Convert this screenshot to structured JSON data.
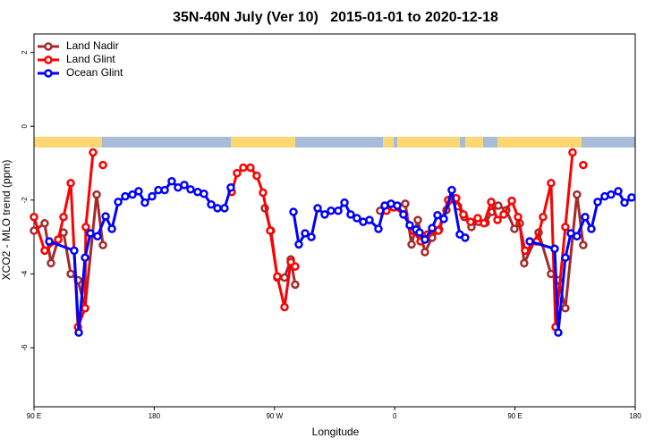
{
  "chart_data": {
    "type": "line",
    "title": "35N-40N July (Ver 10)   2015-01-01 to 2020-12-18",
    "x_label": "Longitude",
    "y_label": "XCO2 - MLO trend (ppm)",
    "xlim": [
      90,
      540
    ],
    "ylim": [
      -7.6,
      2.5
    ],
    "xticks": [
      {
        "value": 90,
        "label": "90 E"
      },
      180,
      {
        "value": 270,
        "label": "90 W"
      },
      {
        "value": 360,
        "label": "0"
      },
      {
        "value": 450,
        "label": "90 E"
      },
      {
        "value": 540,
        "label": "180"
      }
    ],
    "yticks": [
      2,
      0,
      -2,
      -4,
      -6
    ],
    "legend": "top-left",
    "series": [
      {
        "name": "Land Nadir",
        "color": "#a52a2a",
        "x": [
          90,
          98,
          102.7,
          108.1,
          112.1,
          117.5,
          122.9,
          128.2,
          136.9,
          141.6,
          null,
          262.8,
          267.4,
          272.1,
          277.5,
          282.2,
          285.5,
          null,
          349.1,
          357.2,
          367.9,
          372.6,
          377.3,
          382.6,
          388,
          393.3,
          398.7,
          402.7,
          407.4,
          412.1,
          417.4,
          422.8,
          428.1,
          432.8,
          437.5,
          443.5,
          449.6,
          453.6,
          456.9,
          467.7,
          477,
          482.4,
          487.7,
          496.4,
          501.1
        ],
        "values": [
          -2.83,
          -2.63,
          -3.71,
          -3.07,
          -2.88,
          -4,
          -4.17,
          -4.93,
          -1.85,
          -3.22,
          null,
          -2.22,
          -2.83,
          -4.1,
          -4.1,
          -3.61,
          -4.29,
          null,
          -2.29,
          -2.15,
          -2.1,
          -3.2,
          -2.54,
          -3.41,
          -3.02,
          -2.8,
          -2.27,
          -1.98,
          -2.17,
          -2.46,
          -2.73,
          -2.59,
          -2.61,
          -2.32,
          -2.15,
          -2.27,
          -2.78,
          -2.63,
          -3.71,
          -2.88,
          -4,
          -4.17,
          -4.93,
          -1.85,
          -3.22
        ]
      },
      {
        "name": "Land Glint",
        "color": "#ff0000",
        "x": [
          90,
          98,
          108.1,
          112.1,
          117.5,
          122.9,
          128.2,
          128.8,
          134.2,
          null,
          141.6,
          null,
          238,
          242,
          246.7,
          252,
          256.7,
          261.4,
          266.8,
          272.1,
          277.5,
          282.2,
          285.5,
          null,
          353.8,
          359.2,
          367.2,
          373.9,
          379.3,
          384.6,
          392.7,
          400,
          406,
          411.4,
          416.8,
          422.1,
          426.8,
          432.2,
          436.9,
          441.5,
          447.6,
          452.3,
          457.6,
          466.3,
          471,
          477,
          480.4,
          487.7,
          493.1,
          null,
          501.1
        ],
        "values": [
          -2.46,
          -3.37,
          -3.07,
          -2.46,
          -1.54,
          -5.44,
          -4.93,
          -2.73,
          -0.71,
          null,
          -1.05,
          null,
          -1.78,
          -1.27,
          -1.12,
          -1.12,
          -1.34,
          -1.8,
          -2.83,
          -4.07,
          -4.9,
          -3.68,
          -3.8,
          null,
          -2.29,
          -2.2,
          -2.39,
          -2.83,
          -3.12,
          -2.93,
          -2.83,
          -2,
          -1.95,
          -2.39,
          -2.59,
          -2.49,
          -2.63,
          -2.05,
          -2.54,
          -2.39,
          -2.02,
          -2.46,
          -3.37,
          -3.12,
          -2.46,
          -1.54,
          -5.44,
          -2.73,
          -0.71,
          null,
          -1.05
        ]
      },
      {
        "name": "Ocean Glint",
        "color": "#0000ff",
        "x": [
          101.4,
          120.1,
          123.5,
          128.2,
          132.2,
          137.5,
          143.6,
          148.3,
          153,
          158.3,
          163.7,
          168.3,
          173,
          178.4,
          183.1,
          187.8,
          193.1,
          197.8,
          202.5,
          207.2,
          212.5,
          217.2,
          222.6,
          227.3,
          232.6,
          237.3,
          null,
          284.2,
          288.2,
          292.9,
          297.6,
          302.3,
          307.6,
          312.3,
          317.7,
          322.4,
          327,
          331.7,
          336.4,
          341.1,
          347.8,
          352.5,
          357.2,
          361.9,
          366.5,
          371.2,
          375.9,
          378.6,
          382.6,
          388,
          392,
          396.7,
          402.7,
          408.7,
          412.7,
          null,
          461,
          479.7,
          482.4,
          487.7,
          491.8,
          496.4,
          502.5,
          507.2,
          511.9,
          517.2,
          521.9,
          527.3,
          532,
          537.3
        ],
        "values": [
          -3.12,
          -3.37,
          -5.59,
          -3.56,
          -2.9,
          -2.98,
          -2.44,
          -2.78,
          -2.05,
          -1.9,
          -1.85,
          -1.76,
          -2.07,
          -1.9,
          -1.73,
          -1.73,
          -1.49,
          -1.66,
          -1.59,
          -1.71,
          -1.78,
          -1.83,
          -2.12,
          -2.22,
          -2.22,
          -1.66,
          null,
          -2.32,
          -3.2,
          -2.9,
          -3,
          -2.22,
          -2.39,
          -2.29,
          -2.29,
          -2.07,
          -2.39,
          -2.49,
          -2.59,
          -2.54,
          -2.78,
          -2.15,
          -2.1,
          -2.15,
          -2.39,
          -2.68,
          -2.8,
          -2.88,
          -3.07,
          -2.76,
          -2.41,
          -2.51,
          -1.73,
          -2.93,
          -3.02,
          null,
          -3.12,
          -3.32,
          -5.59,
          -3.56,
          -2.9,
          -2.98,
          -2.46,
          -2.78,
          -2.05,
          -1.9,
          -1.85,
          -1.76,
          -2.07,
          -1.93
        ]
      }
    ]
  }
}
